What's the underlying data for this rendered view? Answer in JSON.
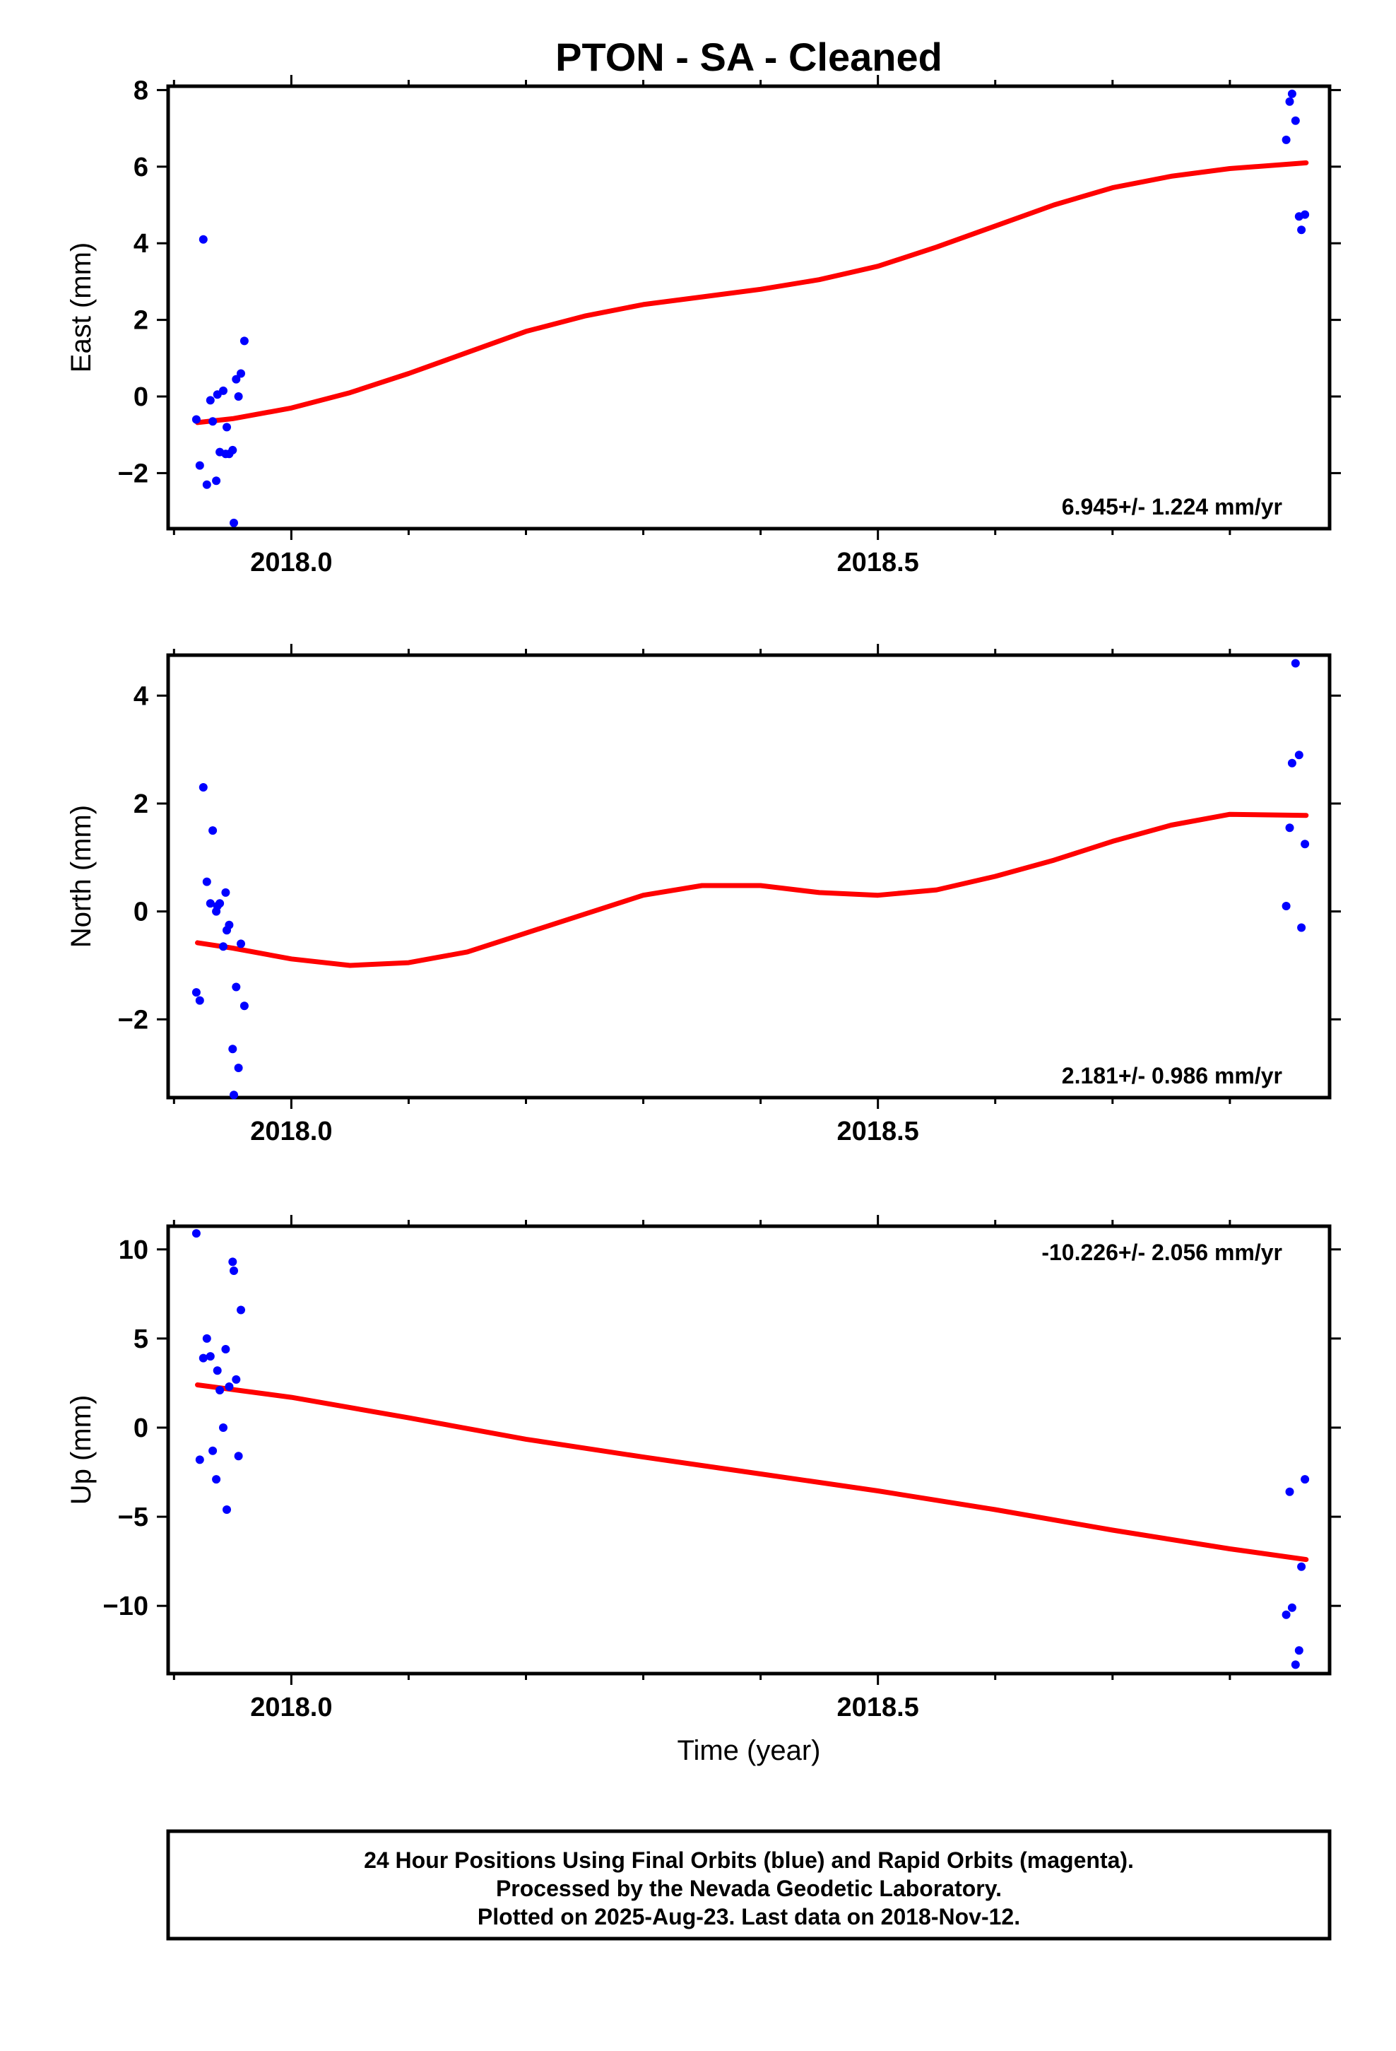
{
  "chart_data": {
    "type": "scatter",
    "title": "PTON  - SA - Cleaned",
    "xlabel": "Time (year)",
    "xlim": [
      2017.895,
      2018.885
    ],
    "xticks": [
      2018.0,
      2018.5
    ],
    "x_tick_labels": [
      "2018.0",
      "2018.5"
    ],
    "colors": {
      "points": "#0000ff",
      "fit": "#ff0000"
    },
    "panels": [
      {
        "ylabel": "East (mm)",
        "ylim": [
          -3.45,
          8.1
        ],
        "yticks": [
          -2,
          0,
          2,
          4,
          6,
          8
        ],
        "y_tick_labels": [
          "−2",
          "0",
          "2",
          "4",
          "6",
          "8"
        ],
        "rate_label": "6.945+/- 1.224 mm/yr",
        "points": [
          [
            2017.919,
            -0.6
          ],
          [
            2017.922,
            -1.8
          ],
          [
            2017.925,
            4.1
          ],
          [
            2017.928,
            -2.3
          ],
          [
            2017.931,
            -0.1
          ],
          [
            2017.933,
            -0.65
          ],
          [
            2017.936,
            -2.2
          ],
          [
            2017.937,
            0.05
          ],
          [
            2017.939,
            -1.45
          ],
          [
            2017.942,
            0.15
          ],
          [
            2017.944,
            -1.5
          ],
          [
            2017.945,
            -0.8
          ],
          [
            2017.947,
            -1.5
          ],
          [
            2017.95,
            -1.4
          ],
          [
            2017.951,
            -3.3
          ],
          [
            2017.953,
            0.45
          ],
          [
            2017.955,
            0.0
          ],
          [
            2017.957,
            0.6
          ],
          [
            2017.96,
            1.45
          ],
          [
            2018.848,
            6.7
          ],
          [
            2018.851,
            7.7
          ],
          [
            2018.853,
            7.9
          ],
          [
            2018.856,
            7.2
          ],
          [
            2018.859,
            4.7
          ],
          [
            2018.861,
            4.35
          ],
          [
            2018.864,
            4.75
          ]
        ],
        "fit": [
          [
            2017.92,
            -0.68
          ],
          [
            2017.95,
            -0.58
          ],
          [
            2018.0,
            -0.3
          ],
          [
            2018.05,
            0.1
          ],
          [
            2018.1,
            0.6
          ],
          [
            2018.15,
            1.15
          ],
          [
            2018.2,
            1.7
          ],
          [
            2018.25,
            2.1
          ],
          [
            2018.3,
            2.4
          ],
          [
            2018.35,
            2.6
          ],
          [
            2018.4,
            2.8
          ],
          [
            2018.45,
            3.05
          ],
          [
            2018.5,
            3.4
          ],
          [
            2018.55,
            3.9
          ],
          [
            2018.6,
            4.45
          ],
          [
            2018.65,
            5.0
          ],
          [
            2018.7,
            5.45
          ],
          [
            2018.75,
            5.75
          ],
          [
            2018.8,
            5.95
          ],
          [
            2018.865,
            6.1
          ]
        ]
      },
      {
        "ylabel": "North (mm)",
        "ylim": [
          -3.45,
          4.75
        ],
        "yticks": [
          -2,
          0,
          2,
          4
        ],
        "y_tick_labels": [
          "−2",
          "0",
          "2",
          "4"
        ],
        "rate_label": "2.181+/- 0.986 mm/yr",
        "points": [
          [
            2017.919,
            -1.5
          ],
          [
            2017.922,
            -1.65
          ],
          [
            2017.925,
            2.3
          ],
          [
            2017.928,
            0.55
          ],
          [
            2017.931,
            0.15
          ],
          [
            2017.933,
            1.5
          ],
          [
            2017.936,
            0.0
          ],
          [
            2017.937,
            0.1
          ],
          [
            2017.939,
            0.15
          ],
          [
            2017.942,
            -0.65
          ],
          [
            2017.944,
            0.35
          ],
          [
            2017.945,
            -0.35
          ],
          [
            2017.947,
            -0.25
          ],
          [
            2017.95,
            -2.55
          ],
          [
            2017.951,
            -3.4
          ],
          [
            2017.953,
            -1.4
          ],
          [
            2017.955,
            -2.9
          ],
          [
            2017.957,
            -0.6
          ],
          [
            2017.96,
            -1.75
          ],
          [
            2018.848,
            0.1
          ],
          [
            2018.851,
            1.55
          ],
          [
            2018.853,
            2.75
          ],
          [
            2018.856,
            4.6
          ],
          [
            2018.859,
            2.9
          ],
          [
            2018.861,
            -0.3
          ],
          [
            2018.864,
            1.25
          ]
        ],
        "fit": [
          [
            2017.92,
            -0.58
          ],
          [
            2017.95,
            -0.68
          ],
          [
            2018.0,
            -0.88
          ],
          [
            2018.05,
            -1.0
          ],
          [
            2018.1,
            -0.95
          ],
          [
            2018.15,
            -0.75
          ],
          [
            2018.2,
            -0.4
          ],
          [
            2018.25,
            -0.05
          ],
          [
            2018.3,
            0.3
          ],
          [
            2018.35,
            0.48
          ],
          [
            2018.4,
            0.48
          ],
          [
            2018.45,
            0.35
          ],
          [
            2018.5,
            0.3
          ],
          [
            2018.55,
            0.4
          ],
          [
            2018.6,
            0.65
          ],
          [
            2018.65,
            0.95
          ],
          [
            2018.7,
            1.3
          ],
          [
            2018.75,
            1.6
          ],
          [
            2018.8,
            1.8
          ],
          [
            2018.865,
            1.78
          ]
        ]
      },
      {
        "ylabel": "Up (mm)",
        "ylim": [
          -13.8,
          11.3
        ],
        "yticks": [
          -10,
          -5,
          0,
          5,
          10
        ],
        "y_tick_labels": [
          "−10",
          "−5",
          "0",
          "5",
          "10"
        ],
        "rate_label": "-10.226+/- 2.056 mm/yr",
        "points": [
          [
            2017.919,
            10.9
          ],
          [
            2017.922,
            -1.8
          ],
          [
            2017.925,
            3.9
          ],
          [
            2017.928,
            5.0
          ],
          [
            2017.931,
            4.0
          ],
          [
            2017.933,
            -1.3
          ],
          [
            2017.936,
            -2.9
          ],
          [
            2017.937,
            3.2
          ],
          [
            2017.939,
            2.1
          ],
          [
            2017.942,
            0.0
          ],
          [
            2017.944,
            4.4
          ],
          [
            2017.945,
            -4.6
          ],
          [
            2017.947,
            2.3
          ],
          [
            2017.95,
            9.3
          ],
          [
            2017.951,
            8.8
          ],
          [
            2017.953,
            2.7
          ],
          [
            2017.955,
            -1.6
          ],
          [
            2017.957,
            6.6
          ],
          [
            2018.848,
            -10.5
          ],
          [
            2018.851,
            -3.6
          ],
          [
            2018.853,
            -10.1
          ],
          [
            2018.856,
            -13.3
          ],
          [
            2018.859,
            -12.5
          ],
          [
            2018.861,
            -7.8
          ],
          [
            2018.864,
            -2.9
          ]
        ],
        "fit": [
          [
            2017.92,
            2.4
          ],
          [
            2018.0,
            1.7
          ],
          [
            2018.1,
            0.55
          ],
          [
            2018.2,
            -0.65
          ],
          [
            2018.3,
            -1.65
          ],
          [
            2018.4,
            -2.6
          ],
          [
            2018.5,
            -3.55
          ],
          [
            2018.6,
            -4.6
          ],
          [
            2018.7,
            -5.75
          ],
          [
            2018.8,
            -6.8
          ],
          [
            2018.865,
            -7.4
          ]
        ]
      }
    ]
  },
  "footer": {
    "line1": "24 Hour Positions Using Final Orbits (blue) and Rapid Orbits (magenta).",
    "line2": "Processed by the Nevada Geodetic Laboratory.",
    "line3": "Plotted on 2025-Aug-23. Last data on 2018-Nov-12."
  }
}
